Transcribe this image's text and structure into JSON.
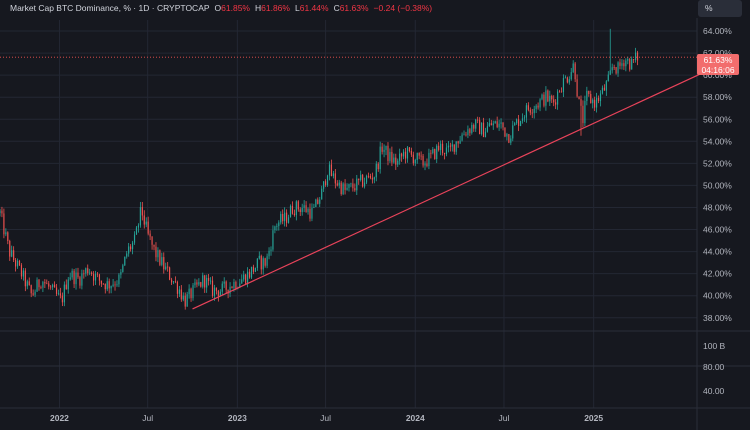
{
  "legend": {
    "symbol": "Market Cap BTC Dominance, %",
    "interval": "1D",
    "source": "CRYPTOCAP",
    "open_key": "O",
    "open": "61.85%",
    "high_key": "H",
    "high": "61.86%",
    "low_key": "L",
    "low": "61.44%",
    "close_key": "C",
    "close": "61.63%",
    "change": "−0.24 (−0.38%)"
  },
  "unit_button": "%",
  "price_tag": {
    "price": "61.63%",
    "countdown": "04:16:06"
  },
  "colors": {
    "background": "#16181f",
    "grid": "#232733",
    "text": "#b2b5be",
    "up": "#26a69a",
    "down": "#ef5350",
    "trendline": "#e8435a",
    "price_tag": "#f26d6d"
  },
  "chart_data": {
    "type": "candlestick",
    "y_axis": {
      "range": [
        36.8,
        65
      ],
      "ticks": [
        "38.00%",
        "40.00%",
        "42.00%",
        "44.00%",
        "46.00%",
        "48.00%",
        "50.00%",
        "52.00%",
        "54.00%",
        "56.00%",
        "58.00%",
        "60.00%",
        "62.00%",
        "64.00%"
      ]
    },
    "x_axis": {
      "range": [
        "2021-09",
        "2025-08"
      ],
      "ticks": [
        {
          "date": "2022-01",
          "label": "2022"
        },
        {
          "date": "2022-07",
          "label": "Jul"
        },
        {
          "date": "2023-01",
          "label": "2023"
        },
        {
          "date": "2023-07",
          "label": "Jul"
        },
        {
          "date": "2024-01",
          "label": "2024"
        },
        {
          "date": "2024-07",
          "label": "Jul"
        },
        {
          "date": "2025-01",
          "label": "2025"
        }
      ]
    },
    "series": [
      {
        "values": [
          [
            "2021-09-01",
            47.5
          ],
          [
            "2021-09-20",
            44.0
          ],
          [
            "2021-10-15",
            42.0
          ],
          [
            "2021-11-05",
            40.0
          ],
          [
            "2021-11-25",
            41.5
          ],
          [
            "2021-12-15",
            40.5
          ],
          [
            "2022-01-05",
            39.5
          ],
          [
            "2022-01-20",
            42.0
          ],
          [
            "2022-02-10",
            41.5
          ],
          [
            "2022-03-01",
            42.5
          ],
          [
            "2022-03-20",
            41.5
          ],
          [
            "2022-04-10",
            41.0
          ],
          [
            "2022-05-05",
            41.5
          ],
          [
            "2022-05-20",
            44.0
          ],
          [
            "2022-06-05",
            45.0
          ],
          [
            "2022-06-18",
            47.8
          ],
          [
            "2022-07-01",
            45.5
          ],
          [
            "2022-07-15",
            44.0
          ],
          [
            "2022-08-05",
            42.5
          ],
          [
            "2022-08-20",
            41.5
          ],
          [
            "2022-09-05",
            40.5
          ],
          [
            "2022-09-15",
            39.5
          ],
          [
            "2022-10-05",
            40.5
          ],
          [
            "2022-10-25",
            41.5
          ],
          [
            "2022-11-10",
            40.5
          ],
          [
            "2022-12-01",
            40.5
          ],
          [
            "2022-12-20",
            41.0
          ],
          [
            "2023-01-10",
            41.5
          ],
          [
            "2023-01-25",
            42.0
          ],
          [
            "2023-02-15",
            43.0
          ],
          [
            "2023-03-01",
            43.0
          ],
          [
            "2023-03-20",
            46.5
          ],
          [
            "2023-04-10",
            47.0
          ],
          [
            "2023-04-25",
            48.0
          ],
          [
            "2023-05-15",
            48.0
          ],
          [
            "2023-06-05",
            47.5
          ],
          [
            "2023-06-25",
            49.5
          ],
          [
            "2023-07-05",
            51.5
          ],
          [
            "2023-07-20",
            50.5
          ],
          [
            "2023-08-10",
            49.5
          ],
          [
            "2023-09-01",
            50.0
          ],
          [
            "2023-09-20",
            50.5
          ],
          [
            "2023-10-10",
            51.0
          ],
          [
            "2023-10-25",
            53.5
          ],
          [
            "2023-11-10",
            52.5
          ],
          [
            "2023-11-25",
            52.0
          ],
          [
            "2023-12-10",
            53.0
          ],
          [
            "2024-01-01",
            52.5
          ],
          [
            "2024-01-15",
            52.0
          ],
          [
            "2024-02-01",
            52.5
          ],
          [
            "2024-02-20",
            53.5
          ],
          [
            "2024-03-10",
            53.0
          ],
          [
            "2024-03-25",
            54.0
          ],
          [
            "2024-04-15",
            55.0
          ],
          [
            "2024-05-01",
            55.5
          ],
          [
            "2024-05-20",
            55.0
          ],
          [
            "2024-06-05",
            55.5
          ],
          [
            "2024-06-25",
            55.5
          ],
          [
            "2024-07-10",
            54.5
          ],
          [
            "2024-08-01",
            56.0
          ],
          [
            "2024-08-20",
            57.0
          ],
          [
            "2024-09-10",
            57.5
          ],
          [
            "2024-09-25",
            58.0
          ],
          [
            "2024-10-10",
            57.5
          ],
          [
            "2024-10-25",
            59.0
          ],
          [
            "2024-11-10",
            60.0
          ],
          [
            "2024-11-22",
            61.0
          ],
          [
            "2024-12-01",
            57.5
          ],
          [
            "2024-12-10",
            56.0
          ],
          [
            "2024-12-18",
            58.0
          ],
          [
            "2025-01-05",
            57.5
          ],
          [
            "2025-01-20",
            58.5
          ],
          [
            "2025-02-01",
            59.5
          ],
          [
            "2025-02-10",
            61.0
          ],
          [
            "2025-02-20",
            60.5
          ],
          [
            "2025-03-05",
            61.5
          ],
          [
            "2025-03-20",
            61.0
          ],
          [
            "2025-04-01",
            61.7
          ]
        ],
        "spikes": [
          [
            "2022-06-18",
            48.5,
            "high"
          ],
          [
            "2024-12-07",
            54.5,
            "low"
          ],
          [
            "2025-02-05",
            64.2,
            "high"
          ]
        ]
      }
    ],
    "trendline": {
      "from": [
        "2022-10-01",
        38.8
      ],
      "to": [
        "2025-09-01",
        60.6
      ]
    },
    "last_price": 61.63,
    "volume_pane": {
      "tick": "100 B"
    },
    "lower_pane": {
      "ticks": [
        "80.00",
        "40.00"
      ]
    },
    "grid": true
  }
}
